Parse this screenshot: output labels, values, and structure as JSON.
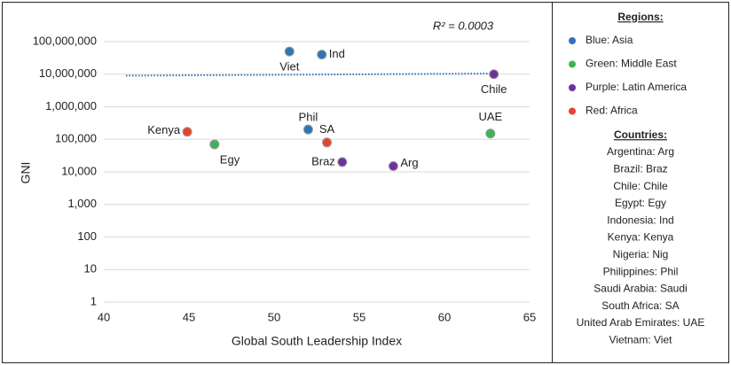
{
  "chart_data": {
    "type": "scatter",
    "xlabel": "Global South Leadership Index",
    "ylabel": "GNI",
    "annotation": "R² = 0.0003",
    "yscale": "log",
    "grid": true,
    "xlim": [
      40,
      65
    ],
    "xticks": [
      40,
      45,
      50,
      55,
      60,
      65
    ],
    "ylim": [
      1,
      100000000
    ],
    "yticks": [
      1,
      10,
      100,
      {
        "value": 1000,
        "label": "1,000"
      },
      {
        "value": 10000,
        "label": "10,000"
      },
      {
        "value": 100000,
        "label": "100,000"
      },
      {
        "value": 1000000,
        "label": "1,000,000"
      },
      {
        "value": 10000000,
        "label": "10,000,000"
      },
      {
        "value": 100000000,
        "label": "100,000,000"
      }
    ],
    "series": [
      {
        "name": "Blue: Asia",
        "color": "#2e75b6",
        "x": [
          50.9,
          52.8,
          52.0
        ],
        "values": [
          50000000,
          40000000,
          200000
        ],
        "labels": [
          "Viet",
          "Ind",
          "Phil"
        ]
      },
      {
        "name": "Green: Middle East",
        "color": "#3bb552",
        "x": [
          46.5,
          62.7
        ],
        "values": [
          70000,
          150000
        ],
        "labels": [
          "Egy",
          "UAE"
        ]
      },
      {
        "name": "Purple: Latin America",
        "color": "#7030a0",
        "x": [
          62.9,
          54.0,
          57.0
        ],
        "values": [
          10000000,
          20000,
          15000
        ],
        "labels": [
          "Chile",
          "Braz",
          "Arg"
        ]
      },
      {
        "name": "Red: Africa",
        "color": "#e8432e",
        "x": [
          44.9,
          53.1
        ],
        "values": [
          170000,
          80000
        ],
        "labels": [
          "Kenya",
          "SA"
        ]
      }
    ],
    "trendline": {
      "color": "#2e75b6",
      "x": [
        41.3,
        63.0
      ],
      "values": [
        9000000,
        10500000
      ]
    },
    "legend_title": "Regions:",
    "countries_title": "Countries:",
    "countries": [
      "Argentina: Arg",
      "Brazil: Braz",
      "Chile: Chile",
      "Egypt: Egy",
      "Indonesia: Ind",
      "Kenya: Kenya",
      "Nigeria: Nig",
      "Philippines: Phil",
      "Saudi Arabia: Saudi",
      "South Africa: SA",
      "United Arab Emirates: UAE",
      "Vietnam: Viet"
    ]
  }
}
